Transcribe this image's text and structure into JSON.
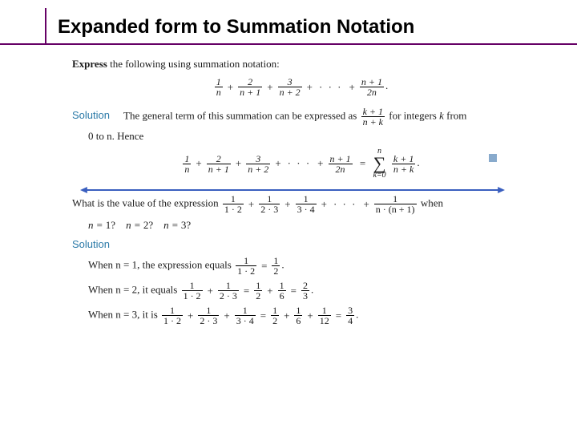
{
  "title": "Expanded form to Summation Notation",
  "colors": {
    "accent_purple": "#660066",
    "solution_blue": "#2b7aa8",
    "qed": "#88aacc",
    "arrow": "#3a5fbf",
    "text": "#1a1a1a"
  },
  "section1": {
    "instruction_bold": "Express",
    "instruction_rest": " the following using summation notation:",
    "series": {
      "terms": [
        {
          "num": "1",
          "den": "n"
        },
        {
          "num": "2",
          "den": "n + 1"
        },
        {
          "num": "3",
          "den": "n + 2"
        }
      ],
      "last": {
        "num": "n + 1",
        "den": "2n"
      },
      "tail": "."
    },
    "solution_label": "Solution",
    "solution_text1": "The general term of this summation can be expressed as ",
    "general_term": {
      "num": "k + 1",
      "den": "n + k"
    },
    "solution_text2": " for integers ",
    "solution_text2_k": "k",
    "solution_text2_tail": " from",
    "range_text": "0 to n. Hence",
    "result": {
      "sum_upper": "n",
      "sum_lower": "k=0",
      "term": {
        "num": "k + 1",
        "den": "n + k"
      },
      "tail": "."
    }
  },
  "section2": {
    "question_lead": "What is the value of the expression  ",
    "series": {
      "terms": [
        {
          "num": "1",
          "den": "1 · 2"
        },
        {
          "num": "1",
          "den": "2 · 3"
        },
        {
          "num": "1",
          "den": "3 · 4"
        }
      ],
      "last": {
        "num": "1",
        "den": "n · (n + 1)"
      }
    },
    "question_tail": "  when",
    "cases_label_prefix": "n = ",
    "cases": [
      "1?",
      "2?",
      "3?"
    ],
    "solution_label": "Solution",
    "rows": [
      {
        "lead": "When n = 1, the expression equals ",
        "parts": [
          {
            "num": "1",
            "den": "1 · 2"
          }
        ],
        "eq": " = ",
        "rhs": [
          {
            "num": "1",
            "den": "2"
          }
        ],
        "tail": "."
      },
      {
        "lead": "When n = 2, it equals ",
        "parts": [
          {
            "num": "1",
            "den": "1 · 2"
          },
          {
            "num": "1",
            "den": "2 · 3"
          }
        ],
        "eq": " = ",
        "mids": [
          {
            "num": "1",
            "den": "2"
          },
          {
            "num": "1",
            "den": "6"
          }
        ],
        "eq2": " = ",
        "rhs": [
          {
            "num": "2",
            "den": "3"
          }
        ],
        "tail": "."
      },
      {
        "lead": "When n = 3, it is ",
        "parts": [
          {
            "num": "1",
            "den": "1 · 2"
          },
          {
            "num": "1",
            "den": "2 · 3"
          },
          {
            "num": "1",
            "den": "3 · 4"
          }
        ],
        "eq": " = ",
        "mids": [
          {
            "num": "1",
            "den": "2"
          },
          {
            "num": "1",
            "den": "6"
          },
          {
            "num": "1",
            "den": "12"
          }
        ],
        "eq2": " = ",
        "rhs": [
          {
            "num": "3",
            "den": "4"
          }
        ],
        "tail": "."
      }
    ]
  }
}
